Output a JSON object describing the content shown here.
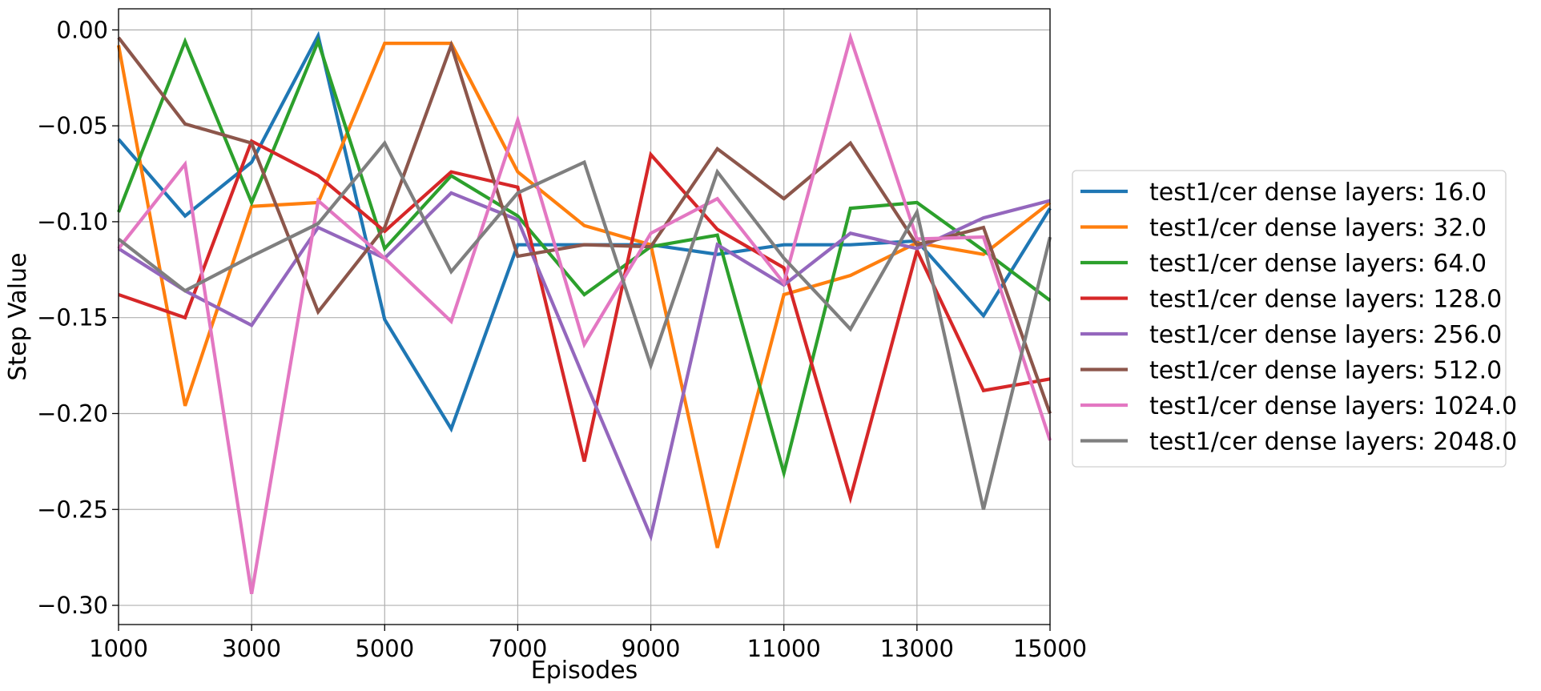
{
  "chart_data": {
    "type": "line",
    "title": "",
    "xlabel": "Episodes",
    "ylabel": "Step Value",
    "xlim": [
      1000,
      15000
    ],
    "ylim": [
      -0.31,
      0.011
    ],
    "xticks": [
      1000,
      3000,
      5000,
      7000,
      9000,
      11000,
      13000,
      15000
    ],
    "xtick_labels": [
      "1000",
      "3000",
      "5000",
      "7000",
      "9000",
      "11000",
      "13000",
      "15000"
    ],
    "yticks": [
      0.0,
      -0.05,
      -0.1,
      -0.15,
      -0.2,
      -0.25,
      -0.3
    ],
    "ytick_labels": [
      "0.00",
      "−0.05",
      "−0.10",
      "−0.15",
      "−0.20",
      "−0.25",
      "−0.30"
    ],
    "grid": true,
    "legend_position": "outside-right",
    "x": [
      1000,
      2000,
      3000,
      4000,
      5000,
      6000,
      7000,
      8000,
      9000,
      10000,
      11000,
      12000,
      13000,
      14000,
      15000
    ],
    "series": [
      {
        "name": "test1/cer dense layers: 16.0",
        "color": "#1f77b4",
        "values": [
          -0.057,
          -0.097,
          -0.069,
          -0.003,
          -0.151,
          -0.208,
          -0.112,
          -0.112,
          -0.112,
          -0.117,
          -0.112,
          -0.112,
          -0.11,
          -0.149,
          -0.093
        ]
      },
      {
        "name": "test1/cer dense layers: 32.0",
        "color": "#ff7f0e",
        "values": [
          -0.008,
          -0.196,
          -0.092,
          -0.09,
          -0.007,
          -0.007,
          -0.074,
          -0.102,
          -0.112,
          -0.27,
          -0.138,
          -0.128,
          -0.111,
          -0.117,
          -0.09
        ]
      },
      {
        "name": "test1/cer dense layers: 64.0",
        "color": "#2ca02c",
        "values": [
          -0.095,
          -0.006,
          -0.09,
          -0.006,
          -0.114,
          -0.076,
          -0.097,
          -0.138,
          -0.113,
          -0.107,
          -0.231,
          -0.093,
          -0.09,
          -0.115,
          -0.141
        ]
      },
      {
        "name": "test1/cer dense layers: 128.0",
        "color": "#d62728",
        "values": [
          -0.138,
          -0.15,
          -0.058,
          -0.076,
          -0.105,
          -0.074,
          -0.082,
          -0.225,
          -0.065,
          -0.104,
          -0.124,
          -0.244,
          -0.115,
          -0.188,
          -0.182
        ]
      },
      {
        "name": "test1/cer dense layers: 256.0",
        "color": "#9467bd",
        "values": [
          -0.114,
          -0.136,
          -0.154,
          -0.103,
          -0.119,
          -0.085,
          -0.099,
          -0.182,
          -0.264,
          -0.112,
          -0.133,
          -0.106,
          -0.114,
          -0.098,
          -0.089
        ]
      },
      {
        "name": "test1/cer dense layers: 512.0",
        "color": "#8c564b",
        "values": [
          -0.004,
          -0.049,
          -0.059,
          -0.147,
          -0.103,
          -0.008,
          -0.118,
          -0.112,
          -0.113,
          -0.062,
          -0.088,
          -0.059,
          -0.112,
          -0.103,
          -0.2
        ]
      },
      {
        "name": "test1/cer dense layers: 1024.0",
        "color": "#e377c2",
        "values": [
          -0.114,
          -0.07,
          -0.294,
          -0.089,
          -0.119,
          -0.152,
          -0.047,
          -0.164,
          -0.106,
          -0.088,
          -0.132,
          -0.004,
          -0.109,
          -0.108,
          -0.214
        ]
      },
      {
        "name": "test1/cer dense layers: 2048.0",
        "color": "#7f7f7f",
        "values": [
          -0.109,
          -0.136,
          -0.118,
          -0.101,
          -0.059,
          -0.126,
          -0.085,
          -0.069,
          -0.175,
          -0.074,
          -0.119,
          -0.156,
          -0.095,
          -0.25,
          -0.108
        ]
      }
    ]
  }
}
